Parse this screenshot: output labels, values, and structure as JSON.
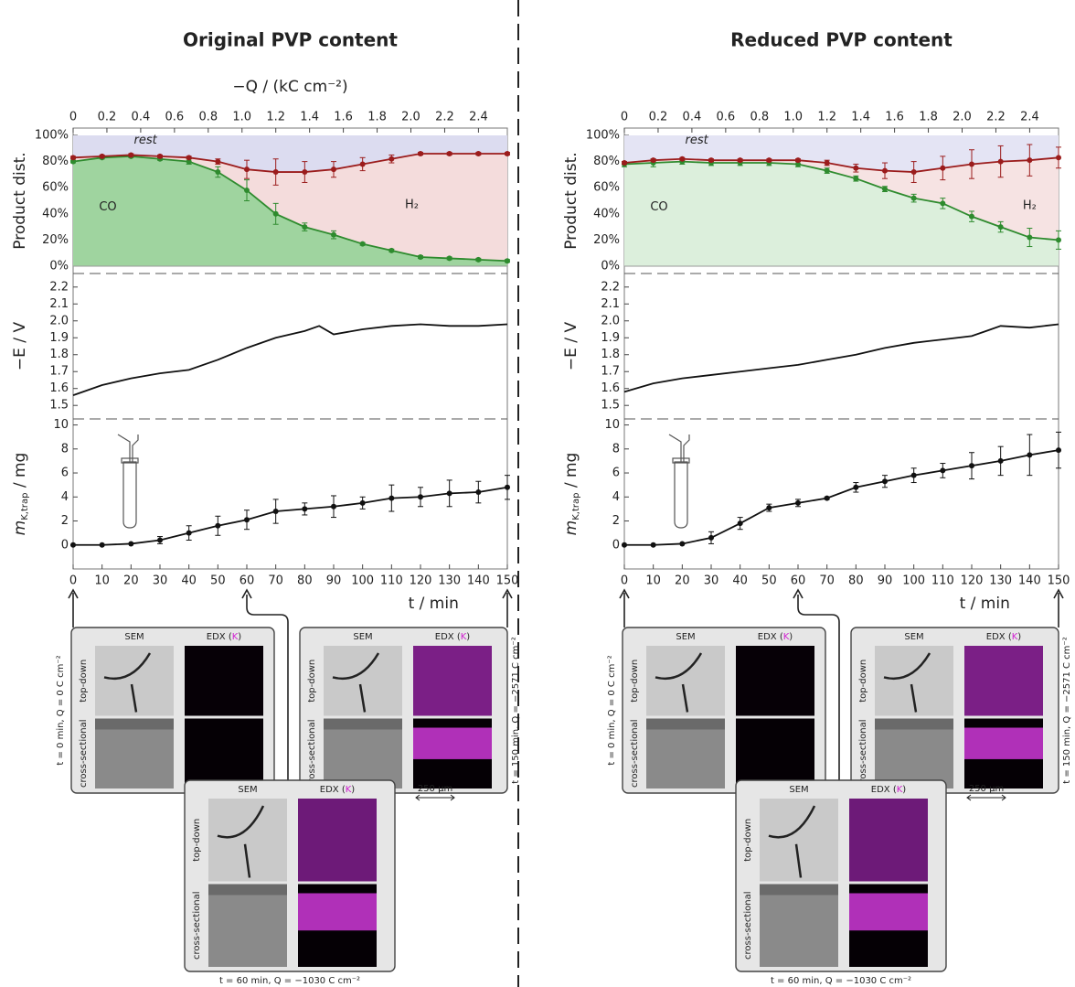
{
  "chart_data": [
    {
      "type": "stacked-area",
      "title": "Original PVP content",
      "x2label": "−Q / (kC cm⁻²)",
      "x": [
        0,
        10,
        20,
        30,
        40,
        50,
        60,
        70,
        80,
        90,
        100,
        110,
        120,
        130,
        140,
        150
      ],
      "xlim": [
        0,
        150
      ],
      "x2lim": [
        0,
        2.571
      ],
      "x2ticks": [
        0,
        0.2,
        0.4,
        0.6,
        0.8,
        {
          "value": 1.0,
          "label": "1.0"
        },
        1.2,
        1.4,
        1.6,
        1.8,
        {
          "value": 2.0,
          "label": "2.0"
        },
        2.2,
        2.4
      ],
      "ylabel": "Product dist.",
      "ylim": [
        -5.6,
        105.6
      ],
      "yticks": [
        {
          "value": 0,
          "label": "0%"
        },
        {
          "value": 20,
          "label": "20%"
        },
        {
          "value": 40,
          "label": "40%"
        },
        {
          "value": 60,
          "label": "60%"
        },
        {
          "value": 80,
          "label": "80%"
        },
        {
          "value": 100,
          "label": "100%"
        }
      ],
      "series": [
        {
          "name": "CO",
          "color": "#2e8b2e",
          "fill": "#9fd49f",
          "markers": true,
          "values": [
            80,
            83,
            84,
            82,
            80,
            72,
            58,
            40,
            30,
            24,
            17,
            12,
            7,
            6,
            5,
            4
          ],
          "errors": [
            1,
            1,
            1,
            1,
            2,
            4,
            8,
            8,
            3,
            3,
            1,
            1,
            1,
            1,
            1,
            1
          ]
        },
        {
          "name": "H₂",
          "color": "#9b1c1c",
          "fill": "#f4dcdc",
          "markers": true,
          "values": [
            3,
            1,
            1,
            2,
            3,
            8,
            16,
            32,
            42,
            50,
            61,
            70,
            79,
            80,
            81,
            82
          ],
          "errors": [
            1,
            1,
            1,
            1,
            1,
            2,
            7,
            10,
            8,
            6,
            5,
            3,
            1,
            1,
            1,
            1
          ]
        },
        {
          "name": "rest",
          "color": "#1c1c6e",
          "fill": "#dcdcf0",
          "markers": false,
          "values": [
            17,
            16,
            15,
            16,
            17,
            20,
            26,
            28,
            28,
            26,
            22,
            18,
            14,
            14,
            14,
            14
          ]
        }
      ]
    },
    {
      "type": "line",
      "ylabel": "−E / V",
      "x": [
        0,
        10,
        20,
        30,
        40,
        50,
        60,
        70,
        80,
        85,
        90,
        100,
        110,
        120,
        130,
        140,
        150
      ],
      "xlim": [
        0,
        150
      ],
      "ylim": [
        1.42,
        2.28
      ],
      "yticks": [
        1.5,
        1.6,
        1.7,
        1.8,
        1.9,
        {
          "value": 2.0,
          "label": "2.0"
        },
        2.1,
        2.2
      ],
      "color": "#111",
      "markers": false,
      "values": [
        1.56,
        1.62,
        1.66,
        1.69,
        1.71,
        1.77,
        1.84,
        1.9,
        1.94,
        1.97,
        1.92,
        1.95,
        1.97,
        1.98,
        1.97,
        1.97,
        1.98
      ]
    },
    {
      "type": "line",
      "ylabel": {
        "main": "m",
        "sub": "K,trap",
        "unit": " / mg"
      },
      "xlabel": "t / min",
      "x": [
        0,
        10,
        20,
        30,
        40,
        50,
        60,
        70,
        80,
        90,
        100,
        110,
        120,
        130,
        140,
        150
      ],
      "xlim": [
        0,
        150
      ],
      "xticks": [
        0,
        10,
        20,
        30,
        40,
        50,
        60,
        70,
        80,
        90,
        100,
        110,
        120,
        130,
        140,
        150
      ],
      "ylim": [
        -2.0,
        10.5
      ],
      "yticks": [
        0,
        2,
        4,
        6,
        8,
        10
      ],
      "color": "#111",
      "markers": true,
      "values": [
        0,
        0,
        0.1,
        0.4,
        1.0,
        1.6,
        2.1,
        2.8,
        3.0,
        3.2,
        3.5,
        3.9,
        4.0,
        4.3,
        4.4,
        4.8
      ],
      "errors": [
        0,
        0,
        0,
        0.3,
        0.6,
        0.8,
        0.8,
        1.0,
        0.5,
        0.9,
        0.5,
        1.1,
        0.8,
        1.1,
        0.9,
        1.0
      ]
    },
    {
      "type": "stacked-area",
      "title": "Reduced PVP content",
      "x": [
        0,
        10,
        20,
        30,
        40,
        50,
        60,
        70,
        80,
        90,
        100,
        110,
        120,
        130,
        140,
        150
      ],
      "xlim": [
        0,
        150
      ],
      "x2lim": [
        0,
        2.571
      ],
      "x2ticks": [
        0,
        0.2,
        0.4,
        0.6,
        0.8,
        {
          "value": 1.0,
          "label": "1.0"
        },
        1.2,
        1.4,
        1.6,
        1.8,
        {
          "value": 2.0,
          "label": "2.0"
        },
        2.2,
        2.4
      ],
      "ylabel": "Product dist.",
      "ylim": [
        -5.6,
        105.6
      ],
      "yticks": [
        {
          "value": 0,
          "label": "0%"
        },
        {
          "value": 20,
          "label": "20%"
        },
        {
          "value": 40,
          "label": "40%"
        },
        {
          "value": 60,
          "label": "60%"
        },
        {
          "value": 80,
          "label": "80%"
        },
        {
          "value": 100,
          "label": "100%"
        }
      ],
      "series": [
        {
          "name": "CO",
          "color": "#2e8b2e",
          "fill": "#dcefdc",
          "markers": true,
          "values": [
            78,
            79,
            80,
            79,
            79,
            79,
            78,
            73,
            67,
            59,
            52,
            48,
            38,
            30,
            22,
            20
          ],
          "errors": [
            2,
            3,
            2,
            2,
            2,
            2,
            2,
            2,
            2,
            2,
            3,
            4,
            4,
            4,
            7,
            7
          ]
        },
        {
          "name": "H₂",
          "color": "#9b1c1c",
          "fill": "#f6e3e3",
          "markers": true,
          "values": [
            1,
            2,
            2,
            2,
            2,
            2,
            3,
            6,
            8,
            14,
            20,
            27,
            40,
            50,
            59,
            63
          ],
          "errors": [
            1,
            1,
            1,
            1,
            1,
            1,
            1,
            2,
            3,
            6,
            8,
            9,
            11,
            12,
            12,
            8
          ]
        },
        {
          "name": "rest",
          "color": "#1c1c6e",
          "fill": "#e4e4f4",
          "markers": false,
          "values": [
            21,
            19,
            18,
            19,
            19,
            19,
            19,
            21,
            25,
            27,
            28,
            25,
            22,
            20,
            19,
            17
          ]
        }
      ]
    },
    {
      "type": "line",
      "ylabel": "−E / V",
      "x": [
        0,
        10,
        20,
        30,
        40,
        50,
        60,
        70,
        80,
        90,
        100,
        110,
        120,
        125,
        130,
        140,
        150
      ],
      "xlim": [
        0,
        150
      ],
      "ylim": [
        1.42,
        2.28
      ],
      "yticks": [
        1.5,
        1.6,
        1.7,
        1.8,
        1.9,
        {
          "value": 2.0,
          "label": "2.0"
        },
        2.1,
        2.2
      ],
      "color": "#111",
      "markers": false,
      "values": [
        1.58,
        1.63,
        1.66,
        1.68,
        1.7,
        1.72,
        1.74,
        1.77,
        1.8,
        1.84,
        1.87,
        1.89,
        1.91,
        1.94,
        1.97,
        1.96,
        1.98
      ]
    },
    {
      "type": "line",
      "ylabel": {
        "main": "m",
        "sub": "K,trap",
        "unit": " / mg"
      },
      "xlabel": "t / min",
      "x": [
        0,
        10,
        20,
        30,
        40,
        50,
        60,
        70,
        80,
        90,
        100,
        110,
        120,
        130,
        140,
        150
      ],
      "xlim": [
        0,
        150
      ],
      "xticks": [
        0,
        10,
        20,
        30,
        40,
        50,
        60,
        70,
        80,
        90,
        100,
        110,
        120,
        130,
        140,
        150
      ],
      "ylim": [
        -2.0,
        10.5
      ],
      "yticks": [
        0,
        2,
        4,
        6,
        8,
        10
      ],
      "color": "#111",
      "markers": true,
      "values": [
        0,
        0,
        0.1,
        0.6,
        1.8,
        3.1,
        3.5,
        3.9,
        4.8,
        5.3,
        5.8,
        6.2,
        6.6,
        7.0,
        7.5,
        7.9
      ],
      "errors": [
        0,
        0,
        0,
        0.5,
        0.5,
        0.3,
        0.3,
        0.1,
        0.4,
        0.5,
        0.6,
        0.6,
        1.1,
        1.2,
        1.7,
        1.5
      ]
    }
  ],
  "micrographs": [
    {
      "panels": [
        {
          "caption": "t = 0 min,  Q = 0 C cm⁻²"
        },
        {
          "caption": "t = 150 min,  Q = −2571 C cm⁻²"
        },
        {
          "caption": "t = 60 min,  Q = −1030 C cm⁻²"
        }
      ],
      "sem_label": "SEM",
      "edx_label": [
        "EDX (",
        "K",
        ")"
      ],
      "row_labels": [
        "top-down",
        "cross-sectional"
      ],
      "scale_bar": "250 µm"
    },
    {
      "panels": [
        {
          "caption": "t = 0 min,  Q = 0 C cm⁻²"
        },
        {
          "caption": "t = 150 min,  Q = −2571 C cm⁻²"
        },
        {
          "caption": "t = 60 min,  Q = −1030 C cm⁻²"
        }
      ],
      "sem_label": "SEM",
      "edx_label": [
        "EDX (",
        "K",
        ")"
      ],
      "row_labels": [
        "top-down",
        "cross-sectional"
      ],
      "scale_bar": "250 µm"
    }
  ]
}
